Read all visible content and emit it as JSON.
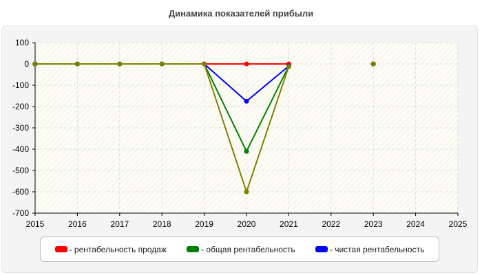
{
  "chart_data": {
    "type": "line",
    "title": "Динамика показателей прибыли",
    "xlabel": "",
    "ylabel": "",
    "xlim": [
      2015,
      2025
    ],
    "ylim": [
      -700,
      100
    ],
    "x_ticks": [
      "2015",
      "2016",
      "2017",
      "2018",
      "2019",
      "2020",
      "2021",
      "2022",
      "2023",
      "2024",
      "2025"
    ],
    "y_ticks": [
      "100",
      "0",
      "-100",
      "-200",
      "-300",
      "-400",
      "-500",
      "-600",
      "-700"
    ],
    "grid": true,
    "legend_position": "bottom",
    "series": [
      {
        "name": "рентабельность продаж",
        "color": "#ff0000",
        "points": [
          [
            2015,
            0
          ],
          [
            2016,
            0
          ],
          [
            2017,
            0
          ],
          [
            2018,
            0
          ],
          [
            2019,
            0
          ],
          [
            2020,
            0
          ],
          [
            2021,
            0
          ],
          [
            2023,
            0
          ]
        ]
      },
      {
        "name": "общая рентабельность",
        "color": "#008000",
        "points": [
          [
            2015,
            0
          ],
          [
            2016,
            0
          ],
          [
            2017,
            0
          ],
          [
            2018,
            0
          ],
          [
            2019,
            0
          ],
          [
            2020,
            -410
          ],
          [
            2021,
            -10
          ],
          [
            2023,
            0
          ]
        ]
      },
      {
        "name": "чистая рентабельность",
        "color": "#0000ff",
        "points": [
          [
            2015,
            0
          ],
          [
            2016,
            0
          ],
          [
            2017,
            0
          ],
          [
            2018,
            0
          ],
          [
            2019,
            0
          ],
          [
            2020,
            -175
          ],
          [
            2021,
            -10
          ],
          [
            2023,
            0
          ]
        ]
      },
      {
        "name": "",
        "color": "#808000",
        "points": [
          [
            2015,
            0
          ],
          [
            2016,
            0
          ],
          [
            2017,
            0
          ],
          [
            2018,
            0
          ],
          [
            2019,
            0
          ],
          [
            2020,
            -600
          ],
          [
            2021,
            -12
          ],
          [
            2023,
            0
          ]
        ]
      }
    ]
  },
  "legend": {
    "items": [
      {
        "label": "- рентабельность продаж",
        "color": "#ff0000"
      },
      {
        "label": "- общая рентабельность",
        "color": "#008000"
      },
      {
        "label": "- чистая рентабельность",
        "color": "#0000ff"
      }
    ]
  }
}
